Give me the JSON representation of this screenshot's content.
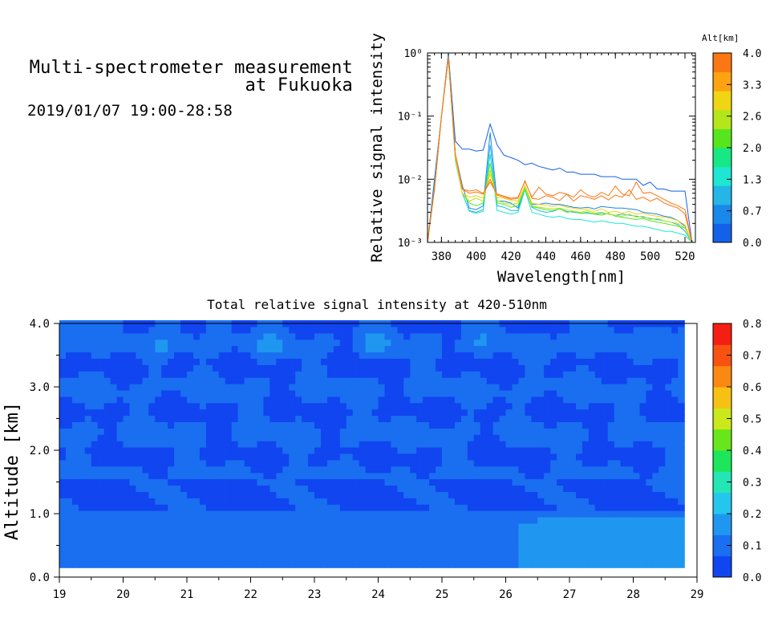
{
  "header": {
    "title_line1": "Multi-spectrometer measurement",
    "title_line2": "at Fukuoka",
    "timestamp": "2019/01/07 19:00-28:58"
  },
  "colors": {
    "alt_scale": [
      "#1560e8",
      "#1a87ea",
      "#23b6e6",
      "#1ee6d2",
      "#18e884",
      "#57e61d",
      "#b4e61a",
      "#f0d515",
      "#fda312",
      "#fb7713"
    ],
    "intensity_scale": [
      "#1045f0",
      "#1a6ef0",
      "#1f97f0",
      "#25c6ee",
      "#24e6b4",
      "#1de65c",
      "#68e61b",
      "#cbe81c",
      "#f7c014",
      "#fa8812",
      "#f85212",
      "#f41f12"
    ]
  },
  "chart_data": [
    {
      "type": "line",
      "xlabel": "Wavelength[nm]",
      "ylabel": "Relative signal intensity",
      "xlim": [
        372,
        526
      ],
      "ylim": [
        0.001,
        1
      ],
      "yscale": "log",
      "x_ticks": [
        380,
        400,
        420,
        440,
        460,
        480,
        500,
        520
      ],
      "x_tick_labels": [
        "380",
        "400",
        "420",
        "440",
        "460",
        "480",
        "500",
        "520"
      ],
      "y_tick_labels": [
        "10⁰",
        "10⁻¹",
        "10⁻²",
        "10⁻³"
      ],
      "colorbar": {
        "label": "Alt[km]",
        "ticks": [
          "4.0",
          "3.3",
          "2.6",
          "2.0",
          "1.3",
          "0.7",
          "0.0"
        ],
        "range": [
          0,
          4
        ]
      },
      "x": [
        372,
        376,
        380,
        384,
        388,
        392,
        396,
        400,
        404,
        408,
        412,
        416,
        420,
        424,
        428,
        432,
        436,
        440,
        444,
        448,
        452,
        456,
        460,
        464,
        468,
        472,
        476,
        480,
        484,
        488,
        492,
        496,
        500,
        504,
        508,
        512,
        516,
        520,
        524
      ],
      "series": [
        {
          "alt": 0.1,
          "values": [
            0.001,
            0.01,
            0.1,
            1,
            0.04,
            0.03,
            0.03,
            0.028,
            0.029,
            0.075,
            0.035,
            0.024,
            0.022,
            0.02,
            0.017,
            0.018,
            0.016,
            0.015,
            0.014,
            0.015,
            0.013,
            0.013,
            0.012,
            0.012,
            0.012,
            0.011,
            0.011,
            0.011,
            0.01,
            0.01,
            0.01,
            0.008,
            0.009,
            0.007,
            0.007,
            0.0065,
            0.0065,
            0.0065,
            0.001
          ]
        },
        {
          "alt": 0.6,
          "values": [
            0.001,
            0.008,
            0.1,
            0.9,
            0.025,
            0.008,
            0.0035,
            0.0033,
            0.0038,
            0.055,
            0.0045,
            0.0045,
            0.0042,
            0.0035,
            0.0075,
            0.004,
            0.004,
            0.0042,
            0.004,
            0.004,
            0.0038,
            0.0036,
            0.0035,
            0.0036,
            0.0034,
            0.0037,
            0.0036,
            0.0035,
            0.0035,
            0.0034,
            0.0033,
            0.003,
            0.0029,
            0.0028,
            0.0026,
            0.0025,
            0.0022,
            0.0018,
            0.001
          ]
        },
        {
          "alt": 1.0,
          "values": [
            0.001,
            0.008,
            0.1,
            0.9,
            0.02,
            0.006,
            0.0032,
            0.003,
            0.0033,
            0.035,
            0.0038,
            0.0036,
            0.0032,
            0.0032,
            0.0072,
            0.0036,
            0.0032,
            0.003,
            0.0031,
            0.0034,
            0.0031,
            0.003,
            0.0029,
            0.0029,
            0.0028,
            0.0029,
            0.0028,
            0.0027,
            0.0028,
            0.0027,
            0.0026,
            0.0025,
            0.0024,
            0.0023,
            0.0022,
            0.0021,
            0.0019,
            0.0015,
            0.001
          ]
        },
        {
          "alt": 1.5,
          "values": [
            0.001,
            0.007,
            0.1,
            0.85,
            0.02,
            0.006,
            0.0031,
            0.0029,
            0.0031,
            0.025,
            0.0032,
            0.003,
            0.0028,
            0.003,
            0.0068,
            0.003,
            0.0028,
            0.0026,
            0.0025,
            0.0026,
            0.0024,
            0.0023,
            0.0023,
            0.0022,
            0.0021,
            0.0022,
            0.0021,
            0.002,
            0.002,
            0.0019,
            0.0018,
            0.0018,
            0.0017,
            0.0016,
            0.0015,
            0.0015,
            0.0014,
            0.0013,
            0.001
          ]
        },
        {
          "alt": 2.0,
          "values": [
            0.001,
            0.007,
            0.1,
            0.85,
            0.022,
            0.006,
            0.0042,
            0.0038,
            0.0042,
            0.018,
            0.0042,
            0.004,
            0.0036,
            0.0038,
            0.0072,
            0.0037,
            0.0035,
            0.0033,
            0.0032,
            0.0034,
            0.003,
            0.0031,
            0.0029,
            0.003,
            0.0028,
            0.0027,
            0.0029,
            0.0026,
            0.0025,
            0.0024,
            0.0023,
            0.0024,
            0.0022,
            0.0021,
            0.002,
            0.0019,
            0.0018,
            0.0017,
            0.001
          ]
        },
        {
          "alt": 2.6,
          "values": [
            0.001,
            0.007,
            0.1,
            0.85,
            0.022,
            0.006,
            0.0045,
            0.005,
            0.0045,
            0.014,
            0.0046,
            0.0042,
            0.004,
            0.0042,
            0.0075,
            0.0038,
            0.0036,
            0.0035,
            0.0034,
            0.0035,
            0.0033,
            0.0031,
            0.003,
            0.0032,
            0.0029,
            0.003,
            0.0028,
            0.0027,
            0.0026,
            0.0028,
            0.0025,
            0.0026,
            0.0023,
            0.0024,
            0.0022,
            0.0021,
            0.002,
            0.0017,
            0.001
          ]
        },
        {
          "alt": 3.0,
          "values": [
            0.001,
            0.007,
            0.1,
            0.85,
            0.022,
            0.006,
            0.0052,
            0.0055,
            0.005,
            0.012,
            0.0052,
            0.005,
            0.0046,
            0.0045,
            0.008,
            0.0042,
            0.004,
            0.0039,
            0.0037,
            0.0039,
            0.0036,
            0.0035,
            0.0033,
            0.0034,
            0.0031,
            0.0034,
            0.003,
            0.0031,
            0.0029,
            0.0031,
            0.0028,
            0.0029,
            0.0027,
            0.0026,
            0.0025,
            0.0024,
            0.0022,
            0.0019,
            0.001
          ]
        },
        {
          "alt": 3.6,
          "values": [
            0.001,
            0.007,
            0.1,
            0.85,
            0.025,
            0.007,
            0.006,
            0.0063,
            0.0058,
            0.01,
            0.0056,
            0.0052,
            0.0048,
            0.005,
            0.0095,
            0.005,
            0.0048,
            0.0055,
            0.0052,
            0.0046,
            0.0058,
            0.0045,
            0.0055,
            0.0052,
            0.0048,
            0.0055,
            0.0047,
            0.0056,
            0.0052,
            0.0068,
            0.0048,
            0.0052,
            0.0045,
            0.005,
            0.0042,
            0.0038,
            0.0035,
            0.0028,
            0.001
          ]
        },
        {
          "alt": 4.0,
          "values": [
            0.001,
            0.007,
            0.1,
            0.85,
            0.025,
            0.007,
            0.0065,
            0.0068,
            0.006,
            0.009,
            0.0058,
            0.0054,
            0.005,
            0.0052,
            0.0092,
            0.0052,
            0.0075,
            0.0058,
            0.0055,
            0.0062,
            0.0058,
            0.0052,
            0.0068,
            0.0056,
            0.0052,
            0.0062,
            0.0055,
            0.0078,
            0.0058,
            0.0055,
            0.009,
            0.006,
            0.0062,
            0.0055,
            0.0048,
            0.0042,
            0.0038,
            0.0033,
            0.001
          ]
        }
      ]
    },
    {
      "type": "heatmap",
      "title": "Total relative signal intensity at 420-510nm",
      "xlabel": "",
      "ylabel": "Altitude [km]",
      "xlim": [
        19,
        29
      ],
      "ylim": [
        0,
        4
      ],
      "x_tick_labels": [
        "19",
        "20",
        "21",
        "22",
        "23",
        "24",
        "25",
        "26",
        "27",
        "28",
        "29"
      ],
      "y_tick_labels": [
        "0.0",
        "1.0",
        "2.0",
        "3.0",
        "4.0"
      ],
      "colorbar": {
        "ticks": [
          "0.8",
          "0.7",
          "0.6",
          "0.5",
          "0.4",
          "0.3",
          "0.2",
          "0.1",
          "0.0"
        ],
        "range": [
          0,
          0.8
        ]
      }
    }
  ]
}
